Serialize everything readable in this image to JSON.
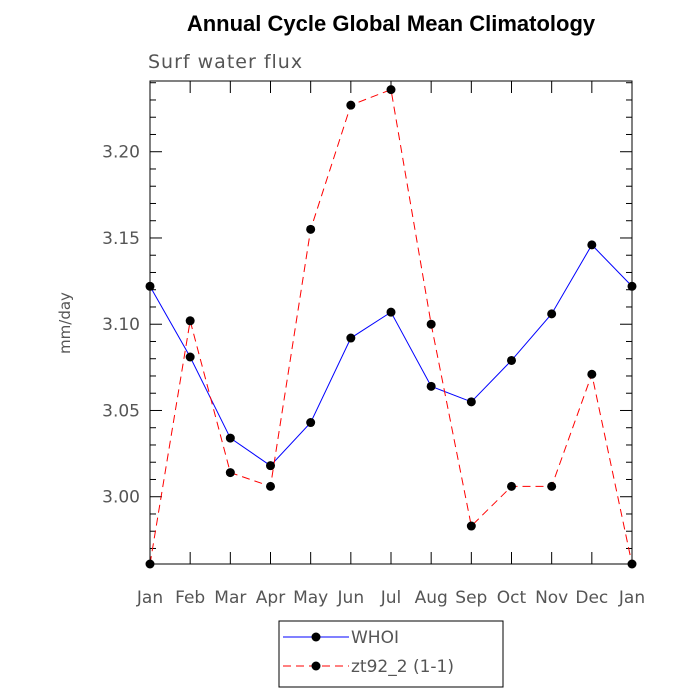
{
  "chart_data": {
    "type": "line",
    "title": "Annual Cycle Global Mean Climatology",
    "subtitle": "Surf water flux",
    "xlabel": "",
    "ylabel": "mm/day",
    "categories": [
      "Jan",
      "Feb",
      "Mar",
      "Apr",
      "May",
      "Jun",
      "Jul",
      "Aug",
      "Sep",
      "Oct",
      "Nov",
      "Dec",
      "Jan"
    ],
    "ylim": [
      2.961,
      3.241
    ],
    "yticks": [
      3.0,
      3.05,
      3.1,
      3.15,
      3.2
    ],
    "ytick_labels": [
      "3.00",
      "3.05",
      "3.10",
      "3.15",
      "3.20"
    ],
    "series": [
      {
        "name": "WHOI",
        "color": "#0000ff",
        "dash": "solid",
        "values": [
          3.122,
          3.081,
          3.034,
          3.018,
          3.043,
          3.092,
          3.107,
          3.064,
          3.055,
          3.079,
          3.106,
          3.146,
          3.122
        ]
      },
      {
        "name": "zt92_2 (1-1)",
        "color": "#ff0000",
        "dash": "dashed",
        "values": [
          2.961,
          3.102,
          3.014,
          3.006,
          3.155,
          3.227,
          3.236,
          3.1,
          2.983,
          3.006,
          3.006,
          3.071,
          2.961
        ]
      }
    ],
    "legend": {
      "placement": "bottom-center",
      "entries": [
        "WHOI",
        "zt92_2 (1-1)"
      ]
    }
  }
}
